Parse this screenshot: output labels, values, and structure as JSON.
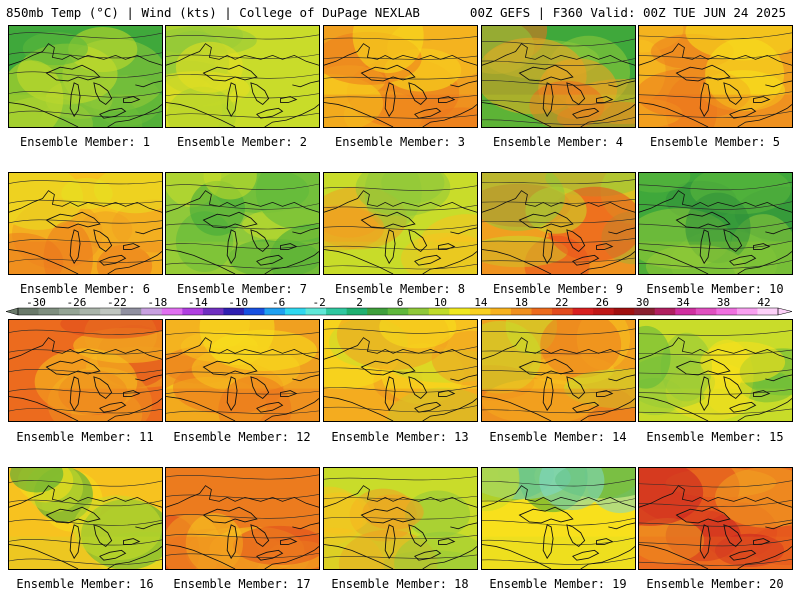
{
  "header": {
    "left": "850mb Temp (°C) | Wind (kts) | College of DuPage NEXLAB",
    "right": "00Z GEFS | F360 Valid: 00Z TUE JUN 24 2025"
  },
  "member_label_prefix": "Ensemble Member: ",
  "panels": [
    {
      "member": "1",
      "palette": [
        "#3fa83b",
        "#5cb83c",
        "#8fc93a",
        "#c9dc2a"
      ],
      "warm": 0.2
    },
    {
      "member": "2",
      "palette": [
        "#c9dc2a",
        "#a8d030",
        "#8fc93a",
        "#e8e020"
      ],
      "warm": 0.1
    },
    {
      "member": "3",
      "palette": [
        "#f0a020",
        "#f7c21f",
        "#ec7b1e",
        "#f8e01c"
      ],
      "warm": 0.7
    },
    {
      "member": "4",
      "palette": [
        "#3fa83b",
        "#8fc93a",
        "#f0a020",
        "#ec6b1e"
      ],
      "warm": 0.5
    },
    {
      "member": "5",
      "palette": [
        "#f0a020",
        "#f7c21f",
        "#ec7b1e",
        "#f8e01c"
      ],
      "warm": 0.7
    },
    {
      "member": "6",
      "palette": [
        "#f7c21f",
        "#f0a020",
        "#ec7b1e",
        "#e8e020"
      ],
      "warm": 0.6
    },
    {
      "member": "7",
      "palette": [
        "#8fc93a",
        "#5cb83c",
        "#c9dc2a",
        "#3fa83b"
      ],
      "warm": 0.2
    },
    {
      "member": "8",
      "palette": [
        "#c9dc2a",
        "#f7c21f",
        "#8fc93a",
        "#f0a020"
      ],
      "warm": 0.4
    },
    {
      "member": "9",
      "palette": [
        "#f0a020",
        "#ec4b1e",
        "#c9dc2a",
        "#8fc93a"
      ],
      "warm": 0.6
    },
    {
      "member": "10",
      "palette": [
        "#3fa83b",
        "#5cb83c",
        "#2f8f3b",
        "#8fc93a"
      ],
      "warm": 0.1
    },
    {
      "member": "11",
      "palette": [
        "#ec6b1e",
        "#f0a020",
        "#e24b1e",
        "#f7c21f"
      ],
      "warm": 0.9
    },
    {
      "member": "12",
      "palette": [
        "#f0a020",
        "#f7c21f",
        "#ec7b1e",
        "#f8e01c"
      ],
      "warm": 0.7
    },
    {
      "member": "13",
      "palette": [
        "#f7c21f",
        "#f0a020",
        "#f8e01c",
        "#c9dc2a"
      ],
      "warm": 0.6
    },
    {
      "member": "14",
      "palette": [
        "#f0a020",
        "#f7c21f",
        "#ec7b1e",
        "#c9dc2a"
      ],
      "warm": 0.7
    },
    {
      "member": "15",
      "palette": [
        "#c9dc2a",
        "#8fc93a",
        "#f8e01c",
        "#5cb83c"
      ],
      "warm": 0.3
    },
    {
      "member": "16",
      "palette": [
        "#f7c21f",
        "#f8e01c",
        "#c9dc2a",
        "#3fa83b"
      ],
      "warm": 0.5
    },
    {
      "member": "17",
      "palette": [
        "#ec7b1e",
        "#f0a020",
        "#e24b1e",
        "#f7c21f"
      ],
      "warm": 0.8
    },
    {
      "member": "18",
      "palette": [
        "#c9dc2a",
        "#f7c21f",
        "#8fc93a",
        "#f0a020"
      ],
      "warm": 0.4
    },
    {
      "member": "19",
      "palette": [
        "#f8e01c",
        "#c9dc2a",
        "#3fa83b",
        "#7fd8c8"
      ],
      "warm": 0.4
    },
    {
      "member": "20",
      "palette": [
        "#ec6b1e",
        "#e24b1e",
        "#f0a020",
        "#c82020"
      ],
      "warm": 0.9
    }
  ],
  "colorbar": {
    "labels": [
      "-30",
      "-26",
      "-22",
      "-18",
      "-14",
      "-10",
      "-6",
      "-2",
      "2",
      "6",
      "10",
      "14",
      "18",
      "22",
      "26",
      "30",
      "34",
      "38",
      "42"
    ],
    "colors": [
      "#6a7a6a",
      "#7f8f7f",
      "#95a595",
      "#aab5aa",
      "#c0c6c0",
      "#9090a0",
      "#c8a0e0",
      "#e070f0",
      "#b040e0",
      "#7030c0",
      "#3020b0",
      "#1850e0",
      "#20a0f0",
      "#30d8f0",
      "#60e8d8",
      "#30c8a0",
      "#20b070",
      "#3f9f3b",
      "#60b83c",
      "#90c93a",
      "#c0dc2a",
      "#f0e820",
      "#f8d020",
      "#f7b21f",
      "#f0901f",
      "#ec6b1e",
      "#e24b1e",
      "#d82020",
      "#c01818",
      "#a01010",
      "#8a2030",
      "#b02060",
      "#d030a0",
      "#e050c0",
      "#f070e0",
      "#f8a0f0",
      "#fcd0f8"
    ]
  }
}
